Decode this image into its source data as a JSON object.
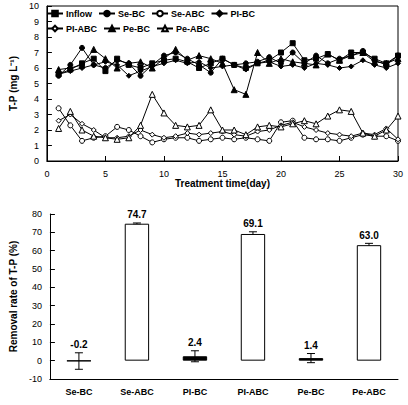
{
  "chart_data": [
    {
      "type": "line",
      "x_label": "Treatment time(day)",
      "y_label": "T-P (mg L⁻¹)",
      "x": [
        1,
        2,
        3,
        4,
        5,
        6,
        7,
        8,
        9,
        10,
        11,
        12,
        13,
        14,
        15,
        16,
        17,
        18,
        19,
        20,
        21,
        22,
        23,
        24,
        25,
        26,
        27,
        28,
        29,
        30
      ],
      "xlim": [
        0,
        30
      ],
      "xticks": [
        0,
        5,
        10,
        15,
        20,
        25,
        30
      ],
      "ylim": [
        0,
        10
      ],
      "yticks": [
        0,
        1,
        2,
        3,
        4,
        5,
        6,
        7,
        8,
        9,
        10
      ],
      "grid": false,
      "legend": "top",
      "series": [
        {
          "name": "Inflow",
          "color": "#000000",
          "marker": "square",
          "values": [
            5.6,
            5.9,
            6.3,
            6.6,
            5.8,
            6.6,
            6.2,
            6.0,
            6.3,
            6.5,
            6.6,
            6.4,
            6.0,
            6.3,
            6.6,
            6.2,
            6.0,
            6.3,
            6.5,
            7.0,
            7.6,
            6.5,
            6.6,
            6.9,
            6.5,
            7.0,
            7.0,
            6.6,
            6.3,
            6.8
          ]
        },
        {
          "name": "Se-BC",
          "color": "#000000",
          "marker": "circle",
          "values": [
            5.5,
            6.2,
            7.3,
            6.2,
            6.0,
            6.5,
            6.3,
            5.5,
            6.2,
            6.8,
            7.0,
            6.6,
            6.2,
            5.7,
            6.6,
            6.2,
            6.3,
            6.4,
            6.7,
            6.3,
            7.0,
            6.3,
            6.8,
            6.3,
            6.6,
            6.8,
            7.1,
            6.5,
            6.2,
            6.8
          ]
        },
        {
          "name": "Se-ABC",
          "color": "#000000",
          "marker": "open-circle",
          "values": [
            3.4,
            2.3,
            1.3,
            1.5,
            1.6,
            2.2,
            2.0,
            1.6,
            1.2,
            1.4,
            1.5,
            1.5,
            1.3,
            1.4,
            1.5,
            1.4,
            1.5,
            1.4,
            1.3,
            2.5,
            2.6,
            1.5,
            1.4,
            1.4,
            1.3,
            1.5,
            1.7,
            1.6,
            1.6,
            1.3
          ]
        },
        {
          "name": "PI-BC",
          "color": "#000000",
          "marker": "diamond",
          "values": [
            5.6,
            5.8,
            6.0,
            6.2,
            6.4,
            6.2,
            5.5,
            5.8,
            6.1,
            6.3,
            6.5,
            6.3,
            6.4,
            6.0,
            6.1,
            6.2,
            5.9,
            6.3,
            6.4,
            6.1,
            6.2,
            6.0,
            6.3,
            6.2,
            6.0,
            6.1,
            6.5,
            6.2,
            6.0,
            6.3
          ]
        },
        {
          "name": "PI-ABC",
          "color": "#000000",
          "marker": "open-diamond",
          "values": [
            2.6,
            3.0,
            2.4,
            2.0,
            1.5,
            1.5,
            1.6,
            2.0,
            1.7,
            1.5,
            1.6,
            1.8,
            1.7,
            1.8,
            1.9,
            1.7,
            1.6,
            1.9,
            2.0,
            2.3,
            2.5,
            2.2,
            2.0,
            1.8,
            1.7,
            1.6,
            1.8,
            1.7,
            2.1,
            1.4
          ]
        },
        {
          "name": "Pe-BC",
          "color": "#000000",
          "marker": "triangle",
          "values": [
            5.9,
            6.0,
            6.2,
            7.2,
            6.6,
            6.0,
            6.3,
            6.4,
            6.0,
            6.6,
            7.2,
            6.5,
            6.8,
            6.6,
            6.3,
            4.6,
            4.3,
            7.0,
            6.3,
            6.6,
            6.4,
            6.3,
            6.2,
            6.9,
            6.5,
            6.8,
            7.0,
            6.4,
            6.3,
            6.6
          ]
        },
        {
          "name": "Pe-ABC",
          "color": "#000000",
          "marker": "open-triangle",
          "values": [
            2.1,
            3.2,
            2.0,
            1.6,
            1.5,
            1.4,
            1.5,
            2.3,
            4.3,
            3.1,
            2.3,
            2.2,
            2.3,
            3.3,
            2.0,
            2.0,
            1.7,
            2.2,
            2.3,
            2.2,
            2.4,
            2.6,
            2.4,
            2.9,
            3.3,
            3.2,
            1.8,
            1.6,
            2.0,
            2.9
          ]
        }
      ]
    },
    {
      "type": "bar",
      "y_label": "Removal rate of T-P (%)",
      "categories": [
        "Se-BC",
        "Se-ABC",
        "PI-BC",
        "PI-ABC",
        "Pe-BC",
        "Pe-ABC"
      ],
      "values": [
        -0.2,
        74.7,
        2.4,
        69.1,
        1.4,
        63.0
      ],
      "value_labels": [
        "-0.2",
        "74.7",
        "2.4",
        "69.1",
        "1.4",
        "63.0"
      ],
      "errors": [
        4.5,
        0.4,
        3.0,
        1.2,
        2.5,
        1.0
      ],
      "colors": [
        "#000000",
        "#ffffff",
        "#000000",
        "#ffffff",
        "#000000",
        "#ffffff"
      ],
      "ylim": [
        -10,
        80
      ],
      "yticks": [
        -10,
        0,
        10,
        20,
        30,
        40,
        50,
        60,
        70,
        80
      ],
      "grid": false,
      "data_labels": true
    }
  ]
}
